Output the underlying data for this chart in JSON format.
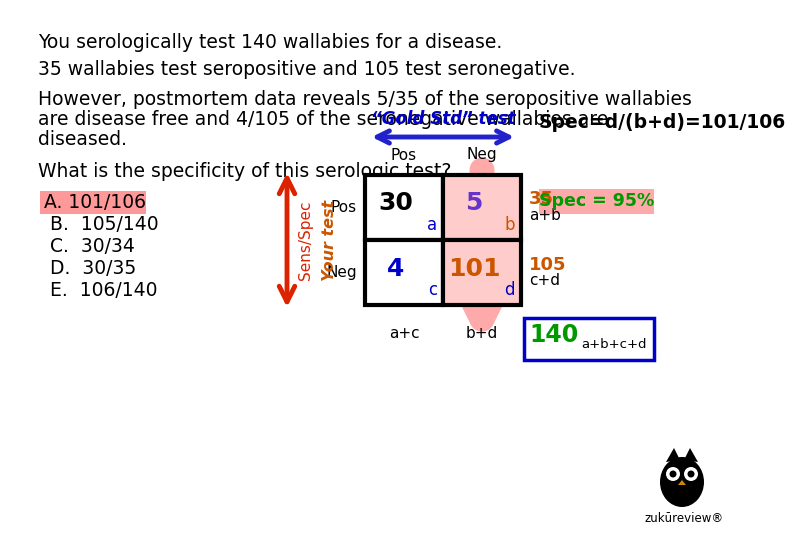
{
  "bg_color": "#ffffff",
  "line1": "You serologically test 140 wallabies for a disease.",
  "line2": "35 wallabies test seropositive and 105 test seronegative.",
  "line3a": "However, postmortem data reveals 5/35 of the seropositive wallabies",
  "line3b": "are disease free and 4/105 of the seronegative wallabies are",
  "line3c": "diseased.",
  "line4": "What is the specificity of this serologic test?",
  "answer_A": "A. 101/106",
  "answer_B": "B.  105/140",
  "answer_C": "C.  30/34",
  "answer_D": "D.  30/35",
  "answer_E": "E.  106/140",
  "answer_A_highlight": "#ff9999",
  "gold_std_label": "“Gold Std” test",
  "your_test_label": "Your test",
  "sens_spec_label": "Sens/Spec",
  "pos_label": "Pos",
  "neg_label": "Neg",
  "cell_a_val": "30",
  "cell_b_val": "5",
  "cell_c_val": "4",
  "cell_d_val": "101",
  "cell_a_letter": "a",
  "cell_b_letter": "b",
  "cell_c_letter": "c",
  "cell_d_letter": "d",
  "row1_sum": "35",
  "row1_label": "a+b",
  "row2_sum": "105",
  "row2_label": "c+d",
  "col1_label": "a+c",
  "col2_label": "b+d",
  "total_val": "140",
  "total_label": "a+b+c+d",
  "spec_formula": "Spec=d/(b+d)=101/106",
  "spec_result": "Spec = 95%",
  "spec_highlight": "#ffaaaa",
  "orange_color": "#cc5500",
  "blue_color": "#0000cc",
  "green_color": "#009900",
  "arrow_blue": "#2222cc",
  "arrow_red": "#dd2200",
  "arrow_pink": "#ffaaaa",
  "cell_b_fill": "#ffcccc",
  "cell_d_fill": "#ffcccc",
  "text_fontsize": 13.5,
  "answer_fontsize": 13.5
}
